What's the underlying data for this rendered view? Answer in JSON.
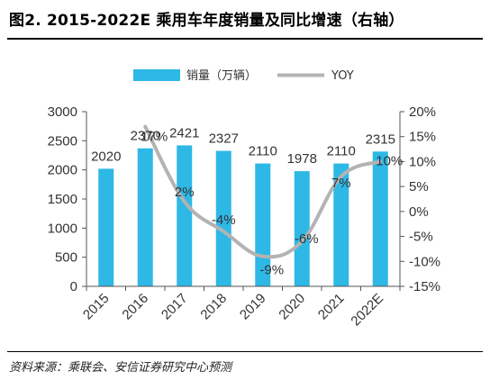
{
  "title": "图2. 2015-2022E 乘用车年度销量及同比增速（右轴）",
  "source": "资料来源：乘联会、安信证券研究中心预测",
  "colors": {
    "bar": "#2EB8E6",
    "line": "#B3B3B3",
    "axis": "#555555",
    "text": "#333333"
  },
  "chart_data": {
    "type": "bar",
    "categories": [
      "2015",
      "2016",
      "2017",
      "2018",
      "2019",
      "2020",
      "2021",
      "2022E"
    ],
    "series": [
      {
        "name": "销量（万辆）",
        "type": "bar",
        "axis": "left",
        "values": [
          2020,
          2370,
          2421,
          2327,
          2110,
          1978,
          2110,
          2315
        ],
        "labels": [
          "2020",
          "2370",
          "2421",
          "2327",
          "2110",
          "1978",
          "2110",
          "2315"
        ]
      },
      {
        "name": "YOY",
        "type": "line",
        "axis": "right",
        "values": [
          null,
          17,
          2,
          -4,
          -9,
          -6,
          7,
          10
        ],
        "labels": [
          "",
          "17%",
          "2%",
          "-4%",
          "-9%",
          "-6%",
          "7%",
          "10%"
        ]
      }
    ],
    "yleft": {
      "range": [
        0,
        3000
      ],
      "ticks": [
        "0",
        "500",
        "1000",
        "1500",
        "2000",
        "2500",
        "3000"
      ]
    },
    "yright": {
      "range": [
        -15,
        20
      ],
      "ticks": [
        "-15%",
        "-10%",
        "-5%",
        "0%",
        "5%",
        "10%",
        "15%",
        "20%"
      ]
    },
    "legend": {
      "placement": "top-center"
    },
    "grid": false
  }
}
